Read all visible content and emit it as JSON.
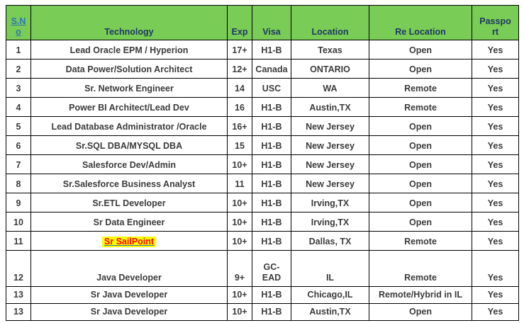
{
  "colors": {
    "header_background": "#79CC55",
    "header_text": "#1F3864",
    "link_blue": "#2E75B6",
    "body_text": "#3B3B3B",
    "highlight_background": "#FFFF00",
    "highlight_text": "#FF0000",
    "border": "#000000"
  },
  "table": {
    "columns": [
      {
        "key": "sno",
        "label": "S.No"
      },
      {
        "key": "technology",
        "label": "Technology"
      },
      {
        "key": "exp",
        "label": "Exp"
      },
      {
        "key": "visa",
        "label": "Visa"
      },
      {
        "key": "location",
        "label": "Location"
      },
      {
        "key": "re_location",
        "label": "Re Location"
      },
      {
        "key": "passport",
        "label": "Passport"
      }
    ],
    "rows": [
      {
        "sno": "1",
        "technology": "Lead Oracle EPM / Hyperion",
        "exp": "17+",
        "visa": "H1-B",
        "location": "Texas",
        "re_location": "Open",
        "passport": "Yes"
      },
      {
        "sno": "2",
        "technology": "Data Power/Solution Architect",
        "exp": "12+",
        "visa": "Canada",
        "location": "ONTARIO",
        "re_location": "Open",
        "passport": "Yes"
      },
      {
        "sno": "3",
        "technology": "Sr. Network Engineer",
        "exp": "14",
        "visa": "USC",
        "location": "WA",
        "re_location": "Remote",
        "passport": "Yes"
      },
      {
        "sno": "4",
        "technology": "Power BI Architect/Lead Dev",
        "exp": "16",
        "visa": "H1-B",
        "location": "Austin,TX",
        "re_location": "Remote",
        "passport": "Yes"
      },
      {
        "sno": "5",
        "technology": "Lead Database Administrator /Oracle",
        "exp": "16+",
        "visa": "H1-B",
        "location": "New Jersey",
        "re_location": "Open",
        "passport": "Yes"
      },
      {
        "sno": "6",
        "technology": "Sr.SQL DBA/MYSQL DBA",
        "exp": "15",
        "visa": "H1-B",
        "location": "New Jersey",
        "re_location": "Open",
        "passport": "Yes"
      },
      {
        "sno": "7",
        "technology": "Salesforce Dev/Admin",
        "exp": "10+",
        "visa": "H1-B",
        "location": "New Jersey",
        "re_location": "Open",
        "passport": "Yes"
      },
      {
        "sno": "8",
        "technology": "Sr.Salesforce Business Analyst",
        "exp": "11",
        "visa": "H1-B",
        "location": "New Jersey",
        "re_location": "Open",
        "passport": "Yes"
      },
      {
        "sno": "9",
        "technology": "Sr.ETL Developer",
        "exp": "10+",
        "visa": "H1-B",
        "location": "Irving,TX",
        "re_location": "Open",
        "passport": "Yes"
      },
      {
        "sno": "10",
        "technology": "Sr Data Engineer",
        "exp": "10+",
        "visa": "H1-B",
        "location": "Irving,TX",
        "re_location": "Open",
        "passport": "Yes"
      },
      {
        "sno": "11",
        "technology": "Sr SailPoint",
        "exp": "10+",
        "visa": "H1-B",
        "location": "Dallas, TX",
        "re_location": "Remote",
        "passport": "Yes",
        "highlighted": true
      },
      {
        "sno": "12",
        "technology": "Java Developer",
        "exp": "9+",
        "visa": "GC-EAD",
        "location": "IL",
        "re_location": "Remote",
        "passport": "Yes"
      },
      {
        "sno": "13",
        "technology": "Sr Java Developer",
        "exp": "10+",
        "visa": "H1-B",
        "location": "Chicago,IL",
        "re_location": "Remote/Hybrid in IL",
        "passport": "Yes"
      },
      {
        "sno": "13",
        "technology": "Sr Java Developer",
        "exp": "10+",
        "visa": "H1-B",
        "location": "Austin,TX",
        "re_location": "Open",
        "passport": "Yes"
      }
    ]
  }
}
